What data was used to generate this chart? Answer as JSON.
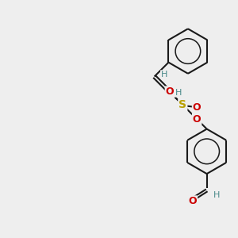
{
  "bg_color": "#eeeeee",
  "bond_color": "#1a1a1a",
  "bond_width": 1.5,
  "S_color": "#b8a000",
  "O_color": "#cc0000",
  "H_color": "#4a8a8a",
  "font_size_S": 10,
  "font_size_O": 9,
  "font_size_H": 8,
  "fig_size": [
    3.0,
    3.0
  ],
  "dpi": 100,
  "xlim": [
    0,
    10
  ],
  "ylim": [
    0,
    10
  ]
}
